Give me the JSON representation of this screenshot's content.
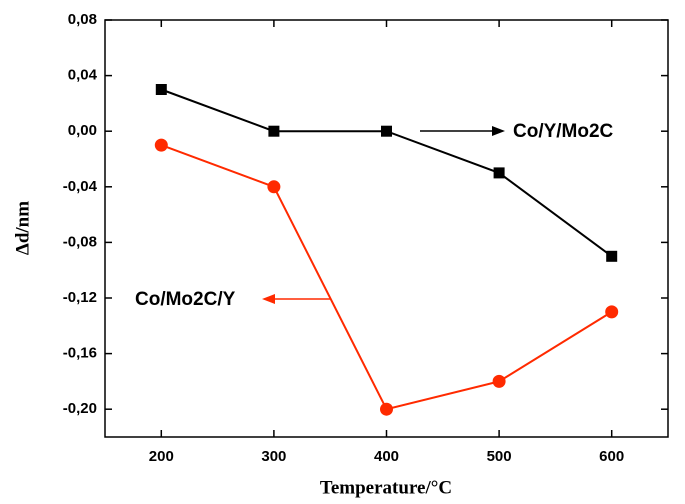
{
  "chart_data": {
    "type": "line",
    "xlabel": "Temperature/°C",
    "ylabel": "Δd/nm",
    "x": [
      200,
      300,
      400,
      500,
      600
    ],
    "series": [
      {
        "name": "Co/Y/Mo2C",
        "color": "#000000",
        "marker": "square",
        "values": [
          0.03,
          0.0,
          0.0,
          -0.03,
          -0.09
        ]
      },
      {
        "name": "Co/Mo2C/Y",
        "color": "#ff2a00",
        "marker": "circle",
        "values": [
          -0.01,
          -0.04,
          -0.2,
          -0.18,
          -0.13
        ]
      }
    ],
    "xlim": [
      150,
      650
    ],
    "xticks": [
      200,
      300,
      400,
      500,
      600
    ],
    "ylim": [
      -0.22,
      0.08
    ],
    "yticks": [
      {
        "value": 0.08,
        "label": "0,08"
      },
      {
        "value": 0.04,
        "label": "0,04"
      },
      {
        "value": 0,
        "label": "0,00"
      },
      {
        "value": -0.04,
        "label": "-0,04"
      },
      {
        "value": -0.08,
        "label": "-0,08"
      },
      {
        "value": -0.12,
        "label": "-0,12"
      },
      {
        "value": -0.16,
        "label": "-0,16"
      },
      {
        "value": -0.2,
        "label": "-0,20"
      }
    ]
  }
}
